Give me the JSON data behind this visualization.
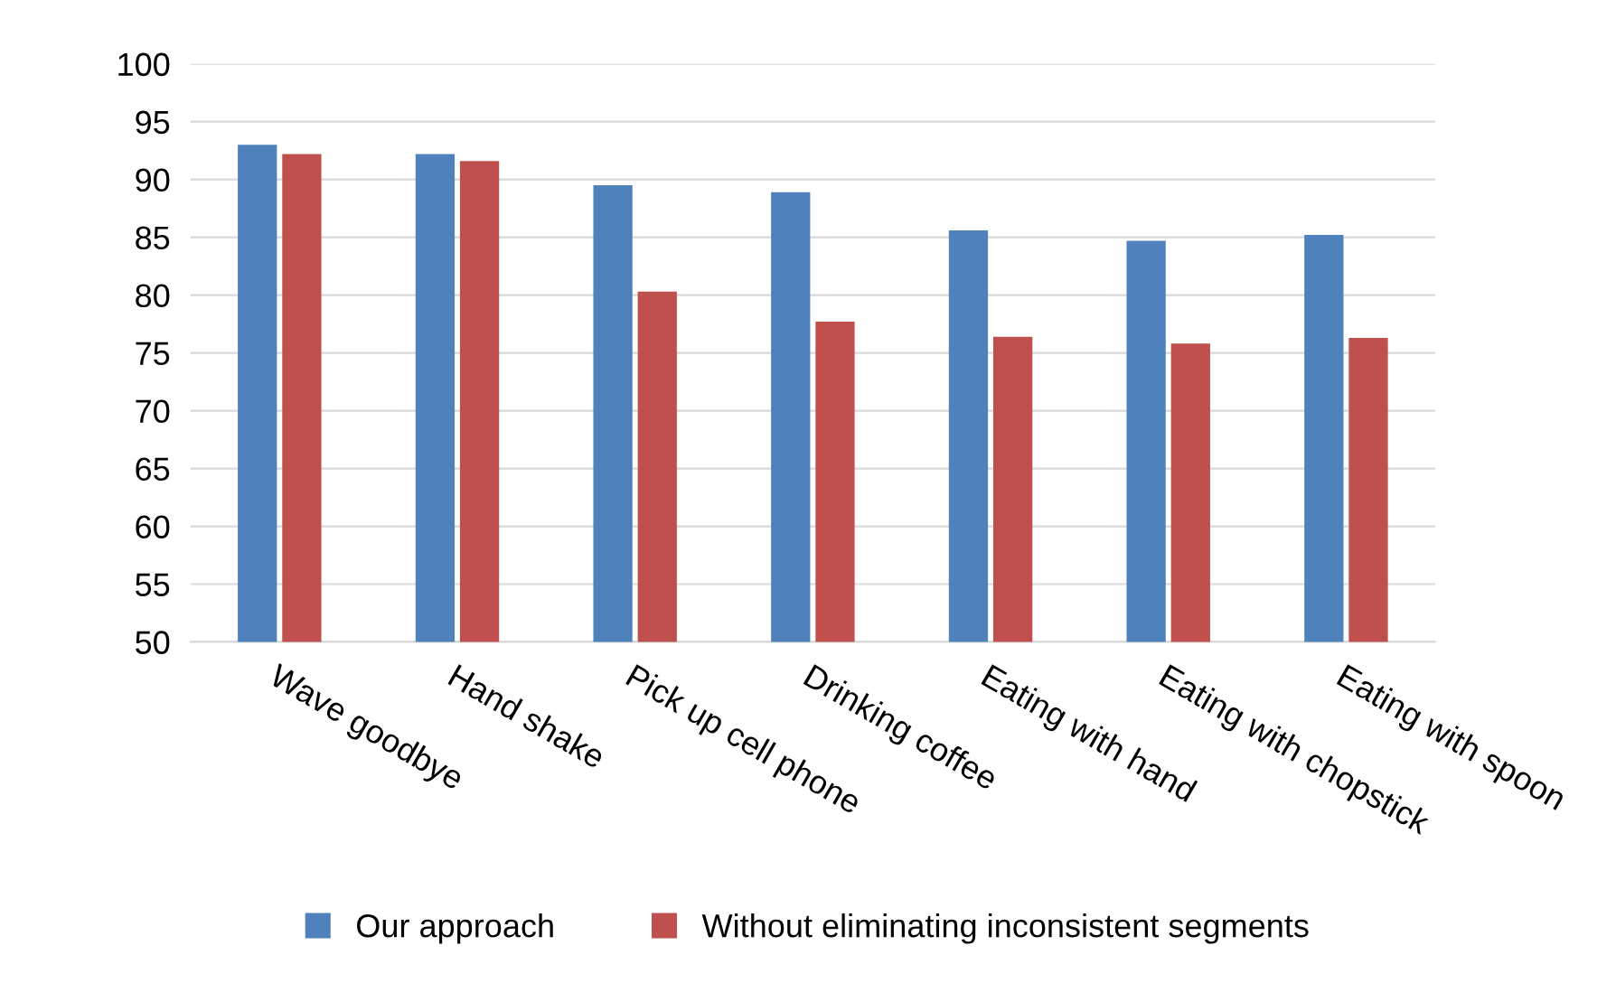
{
  "chart_data": {
    "type": "bar",
    "categories": [
      "Wave goodbye",
      "Hand shake",
      "Pick up cell phone",
      "Drinking coffee",
      "Eating with hand",
      "Eating with chopstick",
      "Eating with spoon"
    ],
    "series": [
      {
        "name": "Our approach",
        "color": "#4f81bd",
        "values": [
          93.0,
          92.2,
          89.5,
          88.9,
          85.6,
          84.7,
          85.2
        ]
      },
      {
        "name": "Without eliminating inconsistent segments",
        "color": "#c0504d",
        "values": [
          92.2,
          91.6,
          80.3,
          77.7,
          76.4,
          75.8,
          76.3
        ]
      }
    ],
    "ylim": [
      50,
      100
    ],
    "yticks": [
      50,
      55,
      60,
      65,
      70,
      75,
      80,
      85,
      90,
      95,
      100
    ],
    "grid": "y",
    "legend": "bottom"
  }
}
